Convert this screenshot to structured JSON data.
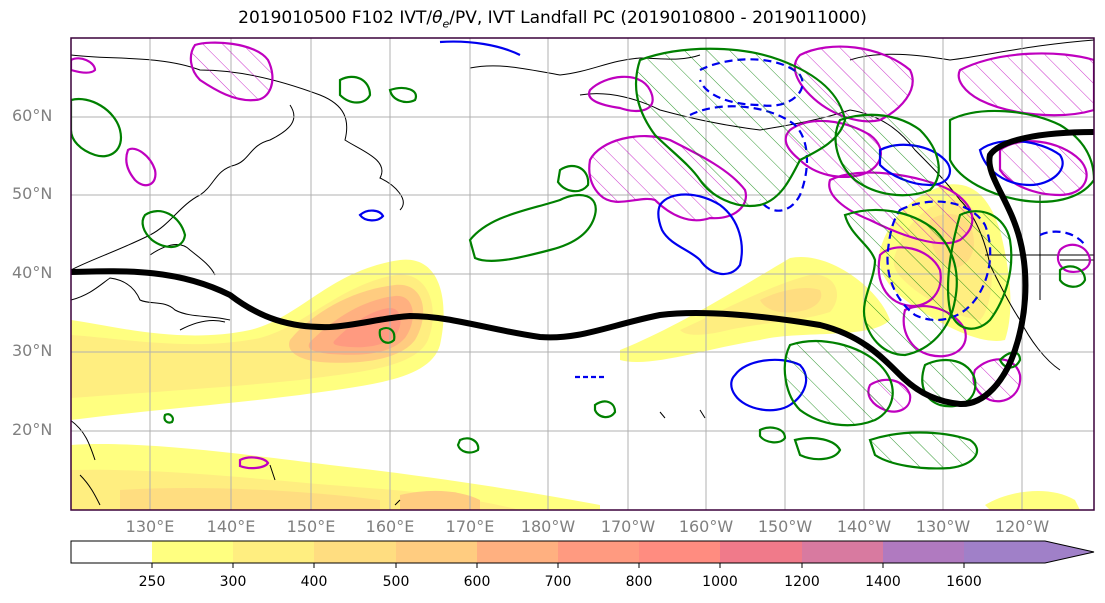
{
  "title_pre": "2019010500 F102 IVT/",
  "title_theta": "θ",
  "title_theta_sub": "e",
  "title_post": "/PV, IVT Landfall PC (2019010800 - 2019011000)",
  "lat_labels": [
    "60°N",
    "50°N",
    "40°N",
    "30°N",
    "20°N"
  ],
  "lon_labels": [
    "130°E",
    "140°E",
    "150°E",
    "160°E",
    "170°E",
    "180°W",
    "170°W",
    "160°W",
    "150°W",
    "140°W",
    "130°W",
    "120°W"
  ],
  "colorbar": {
    "ticks": [
      "250",
      "300",
      "400",
      "500",
      "600",
      "700",
      "800",
      "1000",
      "1200",
      "1400",
      "1600"
    ],
    "colors": [
      "#ffffff",
      "#ffff80",
      "#ffee80",
      "#ffdd80",
      "#ffcc80",
      "#ffb080",
      "#ff9a80",
      "#ff8c80",
      "#f07a8a",
      "#d87aa0",
      "#b07ac0",
      "#a080c8"
    ]
  },
  "colors": {
    "ivt_green": "#008000",
    "pv_magenta": "#bf00bf",
    "theta_blue": "#0000ee",
    "landfall_pc": "#000000"
  }
}
